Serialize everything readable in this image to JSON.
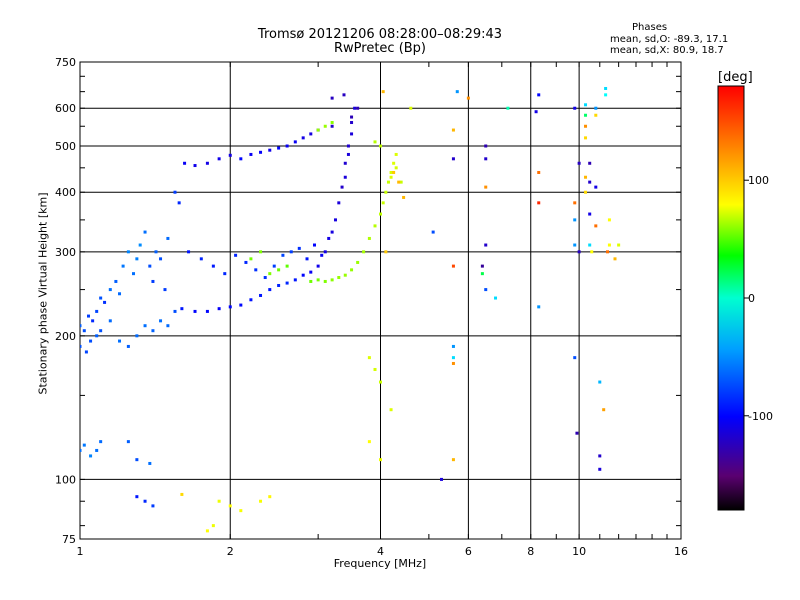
{
  "title": "Tromsø 20121206 08:28:00–08:29:43",
  "subtitle": "RwPretec (Bp)",
  "stats": {
    "header": "Phases",
    "o_line": "mean, sd,O: -89.3, 17.1",
    "x_line": "mean, sd,X:  80.9, 18.7"
  },
  "colorbar": {
    "unit_label": "[deg]",
    "ticks": [
      "100",
      "0",
      "-100"
    ],
    "tick_values": [
      100,
      0,
      -100
    ],
    "range": [
      -180,
      180
    ]
  },
  "chart_data": {
    "type": "scatter",
    "xlabel": "Frequency [MHz]",
    "ylabel": "Stationary phase Virtual Height [km]",
    "x_scale": "log",
    "y_scale": "log",
    "xlim": [
      1,
      16
    ],
    "ylim": [
      75,
      750
    ],
    "x_ticks": [
      {
        "value": 1,
        "label": "1"
      },
      {
        "value": 2,
        "label": "2"
      },
      {
        "value": 4,
        "label": "4"
      },
      {
        "value": 6,
        "label": "6"
      },
      {
        "value": 8,
        "label": "8"
      },
      {
        "value": 10,
        "label": "10"
      },
      {
        "value": 16,
        "label": "16"
      }
    ],
    "x_gridlines": [
      2,
      4,
      6,
      8,
      10
    ],
    "y_ticks": [
      {
        "value": 75,
        "label": "75"
      },
      {
        "value": 100,
        "label": "100"
      },
      {
        "value": 200,
        "label": "200"
      },
      {
        "value": 300,
        "label": "300"
      },
      {
        "value": 400,
        "label": "400"
      },
      {
        "value": 500,
        "label": "500"
      },
      {
        "value": 600,
        "label": "600"
      },
      {
        "value": 750,
        "label": "750"
      }
    ],
    "y_gridlines": [
      100,
      200,
      300,
      400,
      500,
      600
    ],
    "series": [
      {
        "values": [
          [
            1.0,
            210,
            -75
          ],
          [
            1.02,
            205,
            -80
          ],
          [
            1.04,
            220,
            -85
          ],
          [
            1.06,
            215,
            -90
          ],
          [
            1.08,
            225,
            -82
          ],
          [
            1.1,
            240,
            -78
          ],
          [
            1.12,
            235,
            -88
          ],
          [
            1.15,
            250,
            -70
          ],
          [
            1.18,
            260,
            -75
          ],
          [
            1.2,
            245,
            -72
          ],
          [
            1.22,
            280,
            -68
          ],
          [
            1.25,
            300,
            -65
          ],
          [
            1.28,
            270,
            -70
          ],
          [
            1.3,
            290,
            -66
          ],
          [
            1.32,
            310,
            -62
          ],
          [
            1.35,
            330,
            -70
          ],
          [
            1.38,
            280,
            -80
          ],
          [
            1.4,
            260,
            -85
          ],
          [
            1.42,
            300,
            -75
          ],
          [
            1.45,
            290,
            -80
          ],
          [
            1.48,
            250,
            -85
          ],
          [
            1.5,
            320,
            -72
          ],
          [
            1.55,
            400,
            -85
          ],
          [
            1.58,
            380,
            -90
          ],
          [
            1.0,
            190,
            -78
          ],
          [
            1.03,
            185,
            -82
          ],
          [
            1.05,
            195,
            -80
          ],
          [
            1.08,
            200,
            -75
          ],
          [
            1.1,
            205,
            -78
          ],
          [
            1.15,
            215,
            -72
          ],
          [
            1.2,
            195,
            -70
          ],
          [
            1.25,
            190,
            -75
          ],
          [
            1.3,
            200,
            -72
          ],
          [
            1.35,
            210,
            -70
          ],
          [
            1.4,
            205,
            -74
          ],
          [
            1.45,
            215,
            -70
          ],
          [
            1.5,
            210,
            -72
          ],
          [
            1.55,
            225,
            -80
          ],
          [
            1.6,
            228,
            -95
          ],
          [
            1.7,
            225,
            -100
          ],
          [
            1.8,
            225,
            -100
          ],
          [
            1.9,
            228,
            -102
          ],
          [
            2.0,
            230,
            -100
          ],
          [
            2.1,
            232,
            -98
          ],
          [
            2.2,
            238,
            -96
          ],
          [
            2.3,
            243,
            -95
          ],
          [
            2.4,
            250,
            -95
          ],
          [
            2.5,
            255,
            -92
          ],
          [
            2.6,
            258,
            -90
          ],
          [
            2.7,
            262,
            -95
          ],
          [
            2.8,
            268,
            -100
          ],
          [
            2.9,
            272,
            -105
          ],
          [
            3.0,
            280,
            -108
          ],
          [
            3.1,
            300,
            -110
          ],
          [
            3.2,
            330,
            -112
          ],
          [
            3.3,
            380,
            -115
          ],
          [
            3.4,
            430,
            -115
          ],
          [
            3.45,
            480,
            -115
          ],
          [
            3.5,
            530,
            -115
          ],
          [
            3.55,
            600,
            -115
          ],
          [
            1.65,
            300,
            -95
          ],
          [
            1.75,
            290,
            -92
          ],
          [
            1.85,
            280,
            -94
          ],
          [
            1.95,
            270,
            -90
          ],
          [
            2.05,
            295,
            -92
          ],
          [
            2.15,
            285,
            -90
          ],
          [
            2.25,
            275,
            -88
          ],
          [
            2.35,
            265,
            -88
          ],
          [
            2.45,
            280,
            -85
          ],
          [
            2.55,
            295,
            -82
          ],
          [
            2.65,
            300,
            -85
          ],
          [
            2.75,
            305,
            -88
          ],
          [
            2.85,
            290,
            -95
          ],
          [
            2.95,
            310,
            -100
          ],
          [
            3.05,
            295,
            -105
          ],
          [
            3.15,
            320,
            -110
          ],
          [
            3.25,
            350,
            -112
          ],
          [
            3.35,
            410,
            -120
          ],
          [
            3.4,
            460,
            -118
          ],
          [
            3.45,
            500,
            -118
          ],
          [
            3.5,
            560,
            -120
          ],
          [
            3.38,
            640,
            -125
          ],
          [
            3.2,
            630,
            -125
          ],
          [
            1.0,
            115,
            -70
          ],
          [
            1.02,
            118,
            -68
          ],
          [
            1.05,
            112,
            -65
          ],
          [
            1.08,
            115,
            -70
          ],
          [
            1.1,
            120,
            -72
          ],
          [
            1.25,
            120,
            -75
          ],
          [
            1.3,
            110,
            -80
          ],
          [
            1.38,
            108,
            -70
          ],
          [
            1.3,
            92,
            -95
          ],
          [
            1.35,
            90,
            -90
          ],
          [
            1.4,
            88,
            -85
          ],
          [
            1.62,
            460,
            -105
          ],
          [
            1.7,
            455,
            -108
          ],
          [
            1.8,
            460,
            -110
          ],
          [
            1.9,
            470,
            -108
          ],
          [
            2.0,
            478,
            -110
          ],
          [
            2.2,
            480,
            -105
          ],
          [
            2.4,
            490,
            -108
          ],
          [
            2.6,
            500,
            -105
          ],
          [
            2.8,
            520,
            -110
          ],
          [
            3.0,
            540,
            -118
          ],
          [
            2.1,
            470,
            -100
          ],
          [
            2.3,
            485,
            -102
          ],
          [
            2.5,
            495,
            -100
          ],
          [
            2.7,
            510,
            -105
          ],
          [
            2.9,
            530,
            -112
          ],
          [
            3.2,
            550,
            -120
          ],
          [
            3.5,
            575,
            -128
          ],
          [
            3.6,
            600,
            -130
          ],
          [
            2.9,
            260,
            70
          ],
          [
            3.0,
            262,
            72
          ],
          [
            3.1,
            260,
            75
          ],
          [
            3.2,
            262,
            78
          ],
          [
            3.3,
            265,
            80
          ],
          [
            3.4,
            268,
            82
          ],
          [
            3.5,
            275,
            80
          ],
          [
            3.6,
            285,
            82
          ],
          [
            3.7,
            300,
            85
          ],
          [
            3.8,
            320,
            88
          ],
          [
            3.9,
            340,
            90
          ],
          [
            4.0,
            360,
            92
          ],
          [
            4.05,
            380,
            95
          ],
          [
            4.1,
            400,
            95
          ],
          [
            4.15,
            420,
            95
          ],
          [
            4.2,
            440,
            98
          ],
          [
            4.25,
            460,
            100
          ],
          [
            4.3,
            480,
            100
          ],
          [
            4.0,
            500,
            92
          ],
          [
            3.9,
            510,
            90
          ],
          [
            4.2,
            430,
            100
          ],
          [
            4.3,
            450,
            98
          ],
          [
            4.4,
            420,
            95
          ],
          [
            2.4,
            270,
            75
          ],
          [
            2.5,
            275,
            70
          ],
          [
            2.6,
            280,
            65
          ],
          [
            2.2,
            290,
            72
          ],
          [
            2.3,
            300,
            75
          ],
          [
            3.0,
            540,
            80
          ],
          [
            3.1,
            550,
            82
          ],
          [
            3.2,
            560,
            78
          ],
          [
            1.9,
            90,
            105
          ],
          [
            2.0,
            88,
            110
          ],
          [
            2.1,
            86,
            108
          ],
          [
            2.3,
            90,
            108
          ],
          [
            2.4,
            92,
            112
          ],
          [
            1.8,
            78,
            110
          ],
          [
            1.85,
            80,
            105
          ],
          [
            1.6,
            93,
            120
          ],
          [
            3.8,
            180,
            100
          ],
          [
            3.9,
            170,
            98
          ],
          [
            4.0,
            160,
            95
          ],
          [
            3.8,
            120,
            110
          ],
          [
            4.0,
            110,
            105
          ],
          [
            4.2,
            140,
            100
          ],
          [
            4.05,
            650,
            130
          ],
          [
            4.25,
            440,
            125
          ],
          [
            4.35,
            420,
            128
          ],
          [
            4.45,
            390,
            130
          ],
          [
            4.1,
            300,
            125
          ],
          [
            4.6,
            600,
            100
          ],
          [
            5.1,
            330,
            -80
          ],
          [
            5.3,
            100,
            -115
          ],
          [
            5.6,
            175,
            140
          ],
          [
            5.6,
            110,
            130
          ],
          [
            5.6,
            280,
            160
          ],
          [
            5.6,
            470,
            -120
          ],
          [
            5.6,
            540,
            130
          ],
          [
            5.6,
            190,
            -60
          ],
          [
            5.6,
            180,
            -40
          ],
          [
            5.7,
            650,
            -60
          ],
          [
            6.0,
            630,
            140
          ],
          [
            6.4,
            280,
            -140
          ],
          [
            6.4,
            270,
            20
          ],
          [
            6.5,
            250,
            -80
          ],
          [
            6.5,
            310,
            -120
          ],
          [
            6.5,
            470,
            -120
          ],
          [
            6.5,
            500,
            -130
          ],
          [
            6.5,
            410,
            140
          ],
          [
            6.8,
            240,
            -40
          ],
          [
            7.2,
            600,
            -10
          ],
          [
            8.2,
            590,
            -110
          ],
          [
            8.3,
            640,
            -100
          ],
          [
            8.3,
            230,
            -60
          ],
          [
            8.3,
            440,
            150
          ],
          [
            8.3,
            380,
            170
          ],
          [
            9.8,
            600,
            -110
          ],
          [
            9.8,
            380,
            150
          ],
          [
            9.8,
            350,
            -60
          ],
          [
            9.8,
            310,
            -60
          ],
          [
            9.8,
            180,
            -80
          ],
          [
            9.9,
            125,
            -130
          ],
          [
            10.0,
            460,
            -125
          ],
          [
            10.0,
            300,
            -125
          ],
          [
            10.3,
            610,
            -40
          ],
          [
            10.3,
            580,
            10
          ],
          [
            10.3,
            550,
            140
          ],
          [
            10.3,
            520,
            120
          ],
          [
            10.3,
            430,
            130
          ],
          [
            10.3,
            400,
            120
          ],
          [
            10.5,
            420,
            -120
          ],
          [
            10.5,
            460,
            -130
          ],
          [
            10.5,
            360,
            -110
          ],
          [
            10.5,
            310,
            -40
          ],
          [
            10.6,
            300,
            110
          ],
          [
            10.8,
            600,
            -60
          ],
          [
            10.8,
            580,
            120
          ],
          [
            10.8,
            410,
            -110
          ],
          [
            10.8,
            340,
            150
          ],
          [
            11.0,
            160,
            -50
          ],
          [
            11.2,
            140,
            135
          ],
          [
            11.0,
            105,
            -115
          ],
          [
            11.0,
            112,
            -120
          ],
          [
            11.3,
            660,
            -40
          ],
          [
            11.3,
            640,
            -30
          ],
          [
            11.4,
            300,
            150
          ],
          [
            11.5,
            310,
            110
          ],
          [
            11.5,
            350,
            110
          ],
          [
            11.8,
            290,
            130
          ],
          [
            12.0,
            310,
            100
          ]
        ]
      }
    ]
  }
}
